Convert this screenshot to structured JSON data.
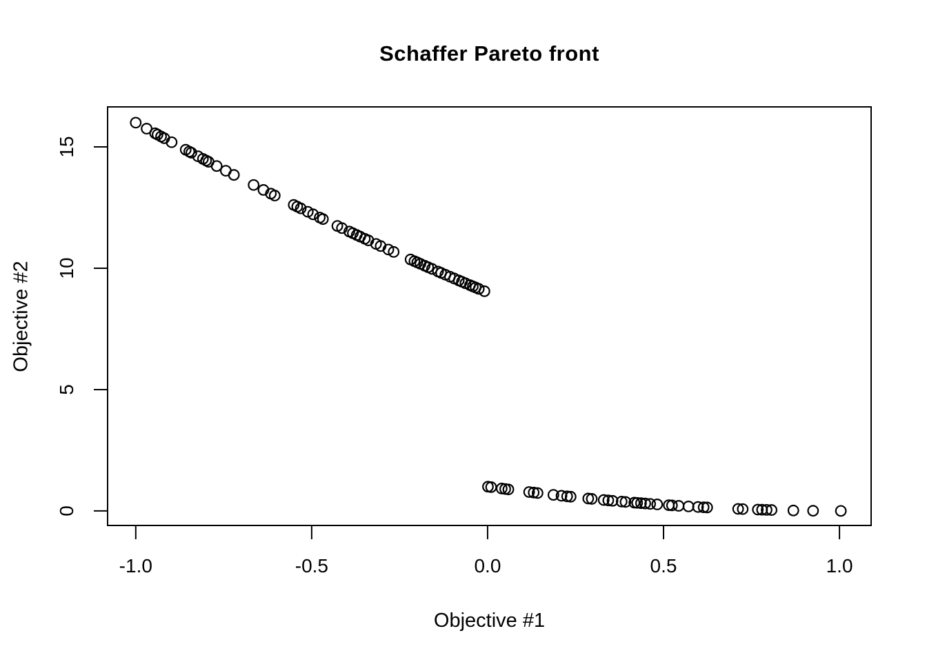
{
  "figure": {
    "background_color": "#ffffff",
    "foreground_color": "#000000"
  },
  "chart_data": {
    "type": "scatter",
    "title": "Schaffer Pareto front",
    "xlabel": "Objective #1",
    "ylabel": "Objective #2",
    "xlim": [
      -1.08,
      1.09
    ],
    "ylim": [
      -0.6,
      16.65
    ],
    "x_ticks": [
      -1.0,
      -0.5,
      0.0,
      0.5,
      1.0
    ],
    "x_tick_labels": [
      "-1.0",
      "-0.5",
      "0.0",
      "0.5",
      "1.0"
    ],
    "y_ticks": [
      0,
      5,
      10,
      15
    ],
    "y_tick_labels": [
      "0",
      "5",
      "10",
      "15"
    ],
    "grid": false,
    "legend": null,
    "marker": {
      "shape": "open-circle",
      "color": "#000000",
      "radius_px": 7.3,
      "stroke_px": 2.2
    },
    "series": [
      {
        "name": "pareto-front-left-branch",
        "points": [
          [
            -1.0,
            16.0
          ],
          [
            -0.969,
            15.753
          ],
          [
            -0.945,
            15.563
          ],
          [
            -0.938,
            15.508
          ],
          [
            -0.928,
            15.429
          ],
          [
            -0.919,
            15.359
          ],
          [
            -0.898,
            15.194
          ],
          [
            -0.858,
            14.884
          ],
          [
            -0.848,
            14.807
          ],
          [
            -0.842,
            14.761
          ],
          [
            -0.823,
            14.615
          ],
          [
            -0.809,
            14.508
          ],
          [
            -0.8,
            14.44
          ],
          [
            -0.793,
            14.387
          ],
          [
            -0.77,
            14.213
          ],
          [
            -0.744,
            14.018
          ],
          [
            -0.721,
            13.846
          ],
          [
            -0.665,
            13.432
          ],
          [
            -0.637,
            13.228
          ],
          [
            -0.616,
            13.075
          ],
          [
            -0.605,
            12.996
          ],
          [
            -0.551,
            12.61
          ],
          [
            -0.541,
            12.539
          ],
          [
            -0.531,
            12.468
          ],
          [
            -0.511,
            12.327
          ],
          [
            -0.496,
            12.222
          ],
          [
            -0.477,
            12.089
          ],
          [
            -0.468,
            12.027
          ],
          [
            -0.427,
            11.744
          ],
          [
            -0.414,
            11.655
          ],
          [
            -0.393,
            11.512
          ],
          [
            -0.383,
            11.445
          ],
          [
            -0.372,
            11.37
          ],
          [
            -0.362,
            11.303
          ],
          [
            -0.349,
            11.216
          ],
          [
            -0.339,
            11.149
          ],
          [
            -0.317,
            11.002
          ],
          [
            -0.304,
            10.916
          ],
          [
            -0.282,
            10.771
          ],
          [
            -0.267,
            10.673
          ],
          [
            -0.219,
            10.362
          ],
          [
            -0.208,
            10.291
          ],
          [
            -0.2,
            10.24
          ],
          [
            -0.191,
            10.182
          ],
          [
            -0.179,
            10.106
          ],
          [
            -0.169,
            10.042
          ],
          [
            -0.158,
            9.973
          ],
          [
            -0.141,
            9.866
          ],
          [
            -0.132,
            9.809
          ],
          [
            -0.12,
            9.734
          ],
          [
            -0.107,
            9.653
          ],
          [
            -0.095,
            9.579
          ],
          [
            -0.082,
            9.499
          ],
          [
            -0.073,
            9.443
          ],
          [
            -0.063,
            9.382
          ],
          [
            -0.05,
            9.303
          ],
          [
            -0.042,
            9.254
          ],
          [
            -0.034,
            9.206
          ],
          [
            -0.025,
            9.151
          ],
          [
            -0.009,
            9.054
          ]
        ]
      },
      {
        "name": "pareto-front-right-branch",
        "points": [
          [
            0.001,
            0.998
          ],
          [
            0.01,
            0.98
          ],
          [
            0.04,
            0.922
          ],
          [
            0.05,
            0.903
          ],
          [
            0.059,
            0.885
          ],
          [
            0.118,
            0.778
          ],
          [
            0.131,
            0.755
          ],
          [
            0.142,
            0.736
          ],
          [
            0.187,
            0.661
          ],
          [
            0.21,
            0.624
          ],
          [
            0.226,
            0.599
          ],
          [
            0.236,
            0.584
          ],
          [
            0.286,
            0.51
          ],
          [
            0.296,
            0.496
          ],
          [
            0.33,
            0.449
          ],
          [
            0.343,
            0.432
          ],
          [
            0.355,
            0.416
          ],
          [
            0.381,
            0.383
          ],
          [
            0.392,
            0.37
          ],
          [
            0.417,
            0.34
          ],
          [
            0.425,
            0.331
          ],
          [
            0.436,
            0.318
          ],
          [
            0.448,
            0.305
          ],
          [
            0.462,
            0.289
          ],
          [
            0.482,
            0.268
          ],
          [
            0.515,
            0.235
          ],
          [
            0.524,
            0.227
          ],
          [
            0.543,
            0.209
          ],
          [
            0.571,
            0.184
          ],
          [
            0.598,
            0.162
          ],
          [
            0.614,
            0.149
          ],
          [
            0.624,
            0.141
          ],
          [
            0.712,
            0.083
          ],
          [
            0.725,
            0.076
          ],
          [
            0.768,
            0.054
          ],
          [
            0.78,
            0.048
          ],
          [
            0.793,
            0.043
          ],
          [
            0.807,
            0.037
          ],
          [
            0.869,
            0.017
          ],
          [
            0.925,
            0.006
          ],
          [
            1.004,
            0.0
          ]
        ]
      }
    ]
  }
}
